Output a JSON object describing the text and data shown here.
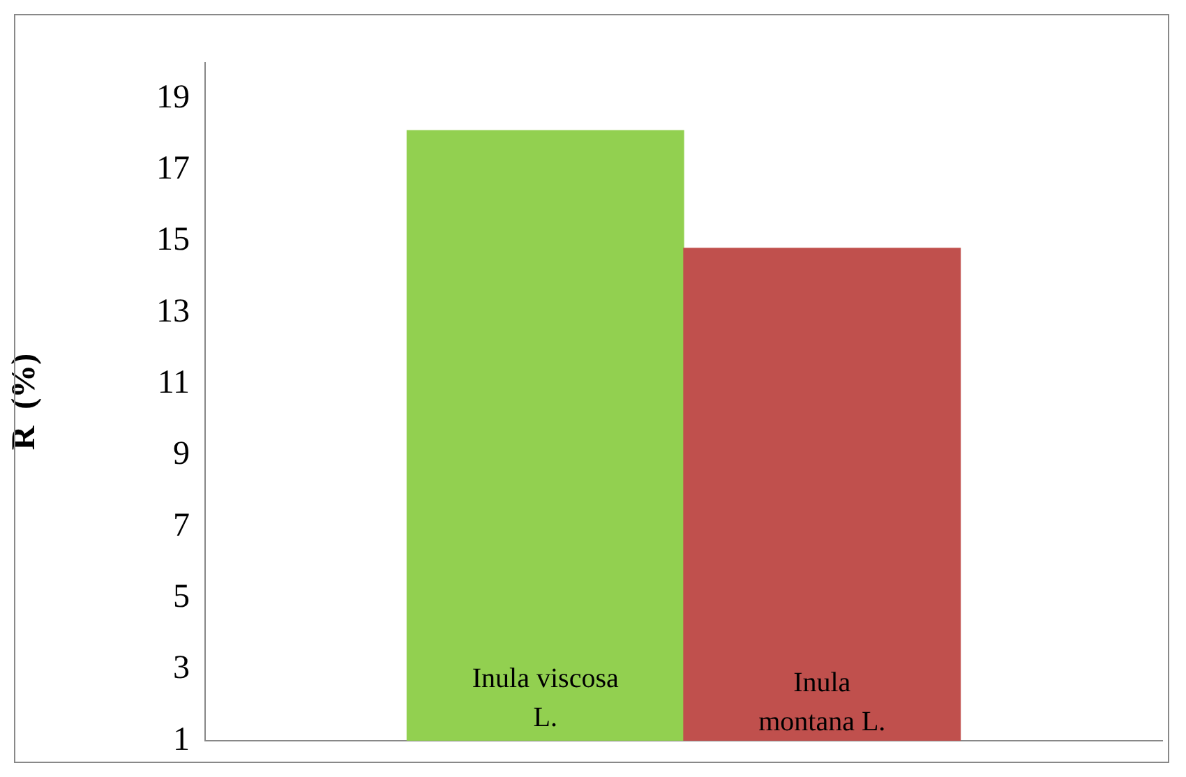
{
  "chart_data": {
    "type": "bar",
    "ylabel": "R  (%)",
    "categories": [
      "Inula viscosa L.",
      "Inula montana L."
    ],
    "values": [
      18.1,
      14.8
    ],
    "colors": [
      "#92d050",
      "#c0504d"
    ],
    "ylim": [
      1,
      20
    ],
    "yticks": [
      1,
      3,
      5,
      7,
      9,
      11,
      13,
      15,
      17,
      19
    ],
    "grid": false,
    "legend": false
  }
}
